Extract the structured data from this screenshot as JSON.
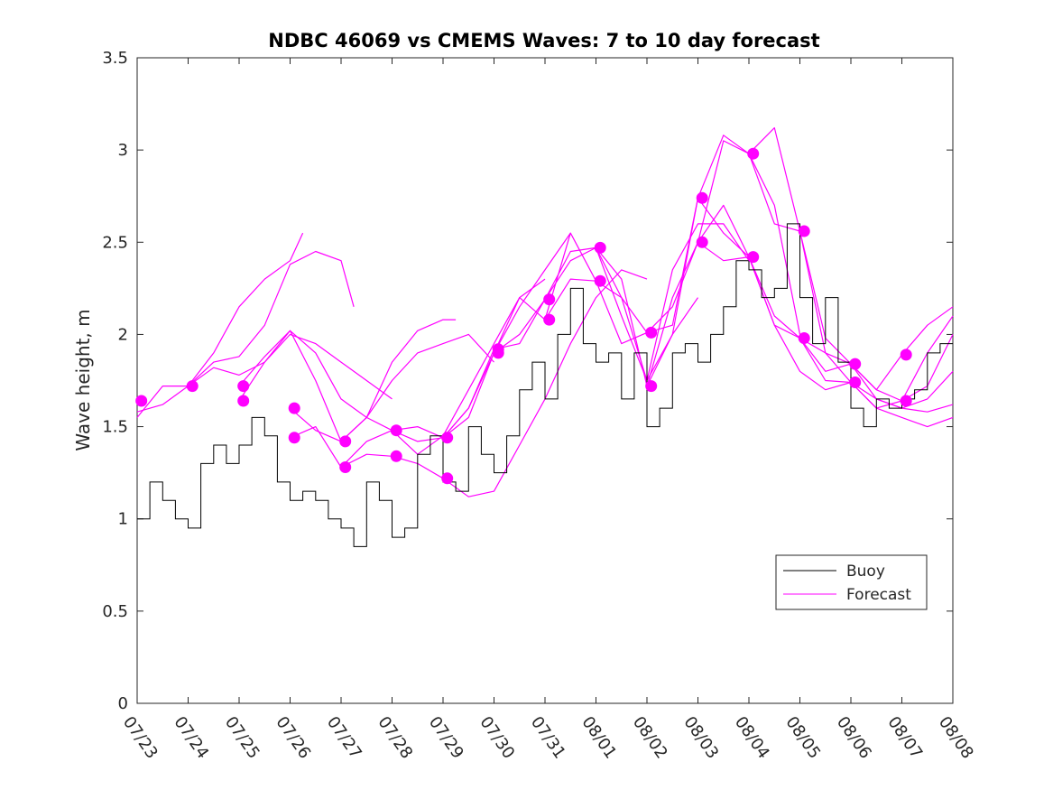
{
  "chart_data": {
    "type": "line",
    "title": "NDBC 46069 vs CMEMS Waves: 7 to 10 day forecast",
    "xlabel": "",
    "ylabel": "Wave height, m",
    "xlim": [
      "07/23",
      "08/08"
    ],
    "ylim": [
      0,
      3.5
    ],
    "x_tick_labels": [
      "07/23",
      "07/24",
      "07/25",
      "07/26",
      "07/27",
      "07/28",
      "07/29",
      "07/30",
      "07/31",
      "08/01",
      "08/02",
      "08/03",
      "08/04",
      "08/05",
      "08/06",
      "08/07",
      "08/08"
    ],
    "y_tick_labels": [
      "0",
      "0.5",
      "1",
      "1.5",
      "2",
      "2.5",
      "3",
      "3.5"
    ],
    "y_ticks": [
      0,
      0.5,
      1,
      1.5,
      2,
      2.5,
      3,
      3.5
    ],
    "grid": false,
    "legend_position": "lower-right",
    "legend": [
      "Buoy",
      "Forecast"
    ],
    "colors": {
      "buoy": "#000000",
      "forecast": "#ff00ff"
    },
    "buoy": {
      "name": "Buoy",
      "x": [
        "07/23 00:00",
        "07/23 06:00",
        "07/23 12:00",
        "07/23 18:00",
        "07/24 00:00",
        "07/24 06:00",
        "07/24 12:00",
        "07/24 18:00",
        "07/25 00:00",
        "07/25 06:00",
        "07/25 12:00",
        "07/25 18:00",
        "07/26 00:00",
        "07/26 06:00",
        "07/26 12:00",
        "07/26 18:00",
        "07/27 00:00",
        "07/27 06:00",
        "07/27 12:00",
        "07/27 18:00",
        "07/28 00:00",
        "07/28 06:00",
        "07/28 12:00",
        "07/28 18:00",
        "07/29 00:00",
        "07/29 06:00",
        "07/29 12:00",
        "07/29 18:00",
        "07/30 00:00",
        "07/30 06:00",
        "07/30 12:00",
        "07/30 18:00",
        "07/31 00:00",
        "07/31 06:00",
        "07/31 12:00",
        "07/31 18:00",
        "08/01 00:00",
        "08/01 06:00",
        "08/01 12:00",
        "08/01 18:00",
        "08/02 00:00",
        "08/02 06:00",
        "08/02 12:00",
        "08/02 18:00",
        "08/03 00:00",
        "08/03 06:00",
        "08/03 12:00",
        "08/03 18:00",
        "08/04 00:00",
        "08/04 06:00",
        "08/04 12:00",
        "08/04 18:00",
        "08/05 00:00",
        "08/05 06:00",
        "08/05 12:00",
        "08/05 18:00",
        "08/06 00:00",
        "08/06 06:00",
        "08/06 12:00",
        "08/06 18:00",
        "08/07 00:00",
        "08/07 06:00",
        "08/07 12:00",
        "08/07 18:00"
      ],
      "y": [
        1.0,
        1.2,
        1.1,
        1.0,
        0.95,
        1.3,
        1.4,
        1.3,
        1.4,
        1.55,
        1.45,
        1.2,
        1.1,
        1.15,
        1.1,
        1.0,
        0.95,
        0.85,
        1.2,
        1.1,
        0.9,
        0.95,
        1.35,
        1.45,
        1.2,
        1.15,
        1.5,
        1.35,
        1.25,
        1.45,
        1.7,
        1.85,
        1.65,
        2.0,
        2.25,
        1.95,
        1.85,
        1.9,
        1.65,
        1.9,
        1.5,
        1.6,
        1.9,
        1.95,
        1.85,
        2.0,
        2.15,
        2.4,
        2.35,
        2.2,
        2.25,
        2.6,
        2.2,
        1.95,
        2.2,
        1.85,
        1.6,
        1.5,
        1.65,
        1.6,
        1.65,
        1.7,
        1.9,
        1.95
      ]
    },
    "forecast_series": [
      {
        "x": [
          "07/23 00:00",
          "07/23 12:00",
          "07/24 00:00",
          "07/24 12:00",
          "07/25 00:00",
          "07/25 12:00",
          "07/26 00:00",
          "07/26 12:00",
          "07/27 00:00",
          "07/27 06:00"
        ],
        "y": [
          1.55,
          1.72,
          1.72,
          1.85,
          1.88,
          2.05,
          2.38,
          2.45,
          2.4,
          2.15
        ]
      },
      {
        "x": [
          "07/23 00:00",
          "07/23 12:00",
          "07/24 00:00",
          "07/24 12:00",
          "07/25 00:00",
          "07/25 12:00",
          "07/26 00:00",
          "07/26 06:00"
        ],
        "y": [
          1.58,
          1.62,
          1.72,
          1.9,
          2.15,
          2.3,
          2.4,
          2.55
        ]
      },
      {
        "x": [
          "07/24 00:00",
          "07/24 12:00",
          "07/25 00:00",
          "07/25 12:00",
          "07/26 00:00",
          "07/26 12:00",
          "07/27 00:00",
          "07/27 12:00",
          "07/28 00:00"
        ],
        "y": [
          1.72,
          1.82,
          1.78,
          1.85,
          2.0,
          1.95,
          1.85,
          1.75,
          1.65
        ]
      },
      {
        "x": [
          "07/25 00:00",
          "07/25 12:00",
          "07/26 00:00",
          "07/26 12:00",
          "07/27 00:00",
          "07/27 12:00",
          "07/28 00:00",
          "07/28 12:00",
          "07/29 00:00",
          "07/29 06:00"
        ],
        "y": [
          1.72,
          1.88,
          2.02,
          1.9,
          1.65,
          1.55,
          1.85,
          2.02,
          2.08,
          2.08
        ]
      },
      {
        "x": [
          "07/25 00:00",
          "07/25 12:00",
          "07/26 00:00",
          "07/26 12:00",
          "07/27 00:00",
          "07/27 12:00",
          "07/28 00:00",
          "07/28 12:00",
          "07/29 00:00",
          "07/29 12:00",
          "07/30 00:00"
        ],
        "y": [
          1.64,
          1.85,
          2.02,
          1.75,
          1.42,
          1.55,
          1.75,
          1.9,
          1.95,
          2.0,
          1.85
        ]
      },
      {
        "x": [
          "07/26 00:00",
          "07/26 12:00",
          "07/27 00:00",
          "07/27 12:00",
          "07/28 00:00",
          "07/28 12:00",
          "07/29 00:00",
          "07/29 12:00",
          "07/30 00:00",
          "07/30 12:00",
          "07/31 00:00"
        ],
        "y": [
          1.6,
          1.48,
          1.42,
          1.55,
          1.48,
          1.35,
          1.45,
          1.7,
          1.95,
          2.2,
          2.3
        ]
      },
      {
        "x": [
          "07/26 00:00",
          "07/26 12:00",
          "07/27 00:00",
          "07/27 12:00",
          "07/28 00:00",
          "07/28 12:00",
          "07/29 00:00",
          "07/29 12:00",
          "07/30 00:00",
          "07/30 12:00",
          "07/31 00:00",
          "07/31 12:00"
        ],
        "y": [
          1.44,
          1.5,
          1.28,
          1.42,
          1.48,
          1.42,
          1.44,
          1.55,
          1.9,
          2.15,
          2.35,
          2.55
        ]
      },
      {
        "x": [
          "07/27 00:00",
          "07/27 12:00",
          "07/28 00:00",
          "07/28 12:00",
          "07/29 00:00",
          "07/29 12:00",
          "07/30 00:00",
          "07/30 12:00",
          "07/31 00:00",
          "07/31 12:00",
          "08/01 00:00",
          "08/01 12:00",
          "08/02 00:00"
        ],
        "y": [
          1.28,
          1.35,
          1.34,
          1.3,
          1.22,
          1.12,
          1.15,
          1.4,
          1.65,
          1.95,
          2.2,
          2.35,
          2.3
        ]
      },
      {
        "x": [
          "07/28 00:00",
          "07/28 12:00",
          "07/29 00:00",
          "07/29 12:00",
          "07/30 00:00",
          "07/30 12:00",
          "07/31 00:00",
          "07/31 12:00",
          "08/01 00:00",
          "08/01 12:00",
          "08/02 00:00",
          "08/02 12:00",
          "08/03 00:00"
        ],
        "y": [
          1.48,
          1.5,
          1.44,
          1.6,
          1.92,
          1.95,
          2.19,
          2.45,
          2.47,
          2.3,
          1.72,
          2.0,
          2.2
        ]
      },
      {
        "x": [
          "07/29 00:00",
          "07/29 12:00",
          "07/30 00:00",
          "07/30 12:00",
          "07/31 00:00",
          "07/31 12:00",
          "08/01 00:00",
          "08/01 12:00",
          "08/02 00:00",
          "08/02 12:00",
          "08/03 00:00",
          "08/03 12:00",
          "08/04 00:00"
        ],
        "y": [
          1.44,
          1.6,
          1.9,
          2.2,
          2.08,
          2.55,
          2.29,
          2.2,
          1.75,
          2.35,
          2.6,
          2.6,
          2.4
        ]
      },
      {
        "x": [
          "07/30 00:00",
          "07/30 12:00",
          "07/31 00:00",
          "07/31 12:00",
          "08/01 00:00",
          "08/01 12:00",
          "08/02 00:00",
          "08/02 12:00",
          "08/03 00:00",
          "08/03 12:00",
          "08/04 00:00",
          "08/04 12:00",
          "08/05 00:00"
        ],
        "y": [
          1.9,
          2.0,
          2.19,
          2.4,
          2.47,
          2.1,
          1.75,
          2.0,
          2.74,
          3.08,
          2.98,
          2.7,
          2.0
        ]
      },
      {
        "x": [
          "07/31 00:00",
          "07/31 12:00",
          "08/01 00:00",
          "08/01 12:00",
          "08/02 00:00",
          "08/02 12:00",
          "08/03 00:00",
          "08/03 12:00",
          "08/04 00:00",
          "08/04 12:00",
          "08/05 00:00",
          "08/05 12:00",
          "08/06 00:00"
        ],
        "y": [
          2.08,
          2.3,
          2.29,
          1.95,
          2.01,
          2.15,
          2.5,
          3.05,
          2.98,
          3.12,
          2.56,
          1.98,
          1.84
        ]
      },
      {
        "x": [
          "08/01 00:00",
          "08/01 12:00",
          "08/02 00:00",
          "08/02 12:00",
          "08/03 00:00",
          "08/03 12:00",
          "08/04 00:00",
          "08/04 12:00",
          "08/05 00:00",
          "08/05 12:00",
          "08/06 00:00",
          "08/06 12:00",
          "08/07 00:00",
          "08/07 12:00",
          "08/08 00:00"
        ],
        "y": [
          2.47,
          2.2,
          2.01,
          2.05,
          2.74,
          2.55,
          2.42,
          2.1,
          1.98,
          1.9,
          1.84,
          1.7,
          1.64,
          1.72,
          2.0
        ]
      },
      {
        "x": [
          "08/02 00:00",
          "08/02 12:00",
          "08/03 00:00",
          "08/03 12:00",
          "08/04 00:00",
          "08/04 12:00",
          "08/05 00:00",
          "08/05 12:00",
          "08/06 00:00",
          "08/06 12:00",
          "08/07 00:00",
          "08/07 12:00",
          "08/08 00:00"
        ],
        "y": [
          1.72,
          2.2,
          2.5,
          2.7,
          2.42,
          2.05,
          1.98,
          1.75,
          1.74,
          1.6,
          1.64,
          1.9,
          2.1
        ]
      },
      {
        "x": [
          "08/03 00:00",
          "08/03 12:00",
          "08/04 00:00",
          "08/04 12:00",
          "08/05 00:00",
          "08/05 12:00",
          "08/06 00:00",
          "08/06 12:00",
          "08/07 00:00",
          "08/07 12:00",
          "08/08 00:00"
        ],
        "y": [
          2.5,
          2.4,
          2.42,
          2.05,
          1.8,
          1.7,
          1.74,
          1.6,
          1.55,
          1.5,
          1.55
        ]
      },
      {
        "x": [
          "08/04 00:00",
          "08/04 12:00",
          "08/05 00:00",
          "08/05 12:00",
          "08/06 00:00",
          "08/06 12:00",
          "08/07 00:00",
          "08/07 12:00",
          "08/08 00:00"
        ],
        "y": [
          2.98,
          2.6,
          2.56,
          1.9,
          1.74,
          1.65,
          1.6,
          1.65,
          1.8
        ]
      },
      {
        "x": [
          "08/05 00:00",
          "08/05 12:00",
          "08/06 00:00",
          "08/06 12:00",
          "08/07 00:00",
          "08/07 12:00",
          "08/08 00:00"
        ],
        "y": [
          1.98,
          1.8,
          1.84,
          1.65,
          1.6,
          1.58,
          1.62
        ]
      },
      {
        "x": [
          "08/06 00:00",
          "08/06 12:00",
          "08/07 00:00",
          "08/07 12:00",
          "08/08 00:00"
        ],
        "y": [
          1.84,
          1.7,
          1.89,
          2.05,
          2.15
        ]
      }
    ],
    "forecast_markers": {
      "x": [
        "07/23 02:00",
        "07/24 02:00",
        "07/25 02:00",
        "07/25 02:00",
        "07/26 02:00",
        "07/26 02:00",
        "07/27 02:00",
        "07/27 02:00",
        "07/28 02:00",
        "07/28 02:00",
        "07/29 02:00",
        "07/29 02:00",
        "07/30 02:00",
        "07/30 02:00",
        "07/31 02:00",
        "07/31 02:00",
        "08/01 02:00",
        "08/01 02:00",
        "08/02 02:00",
        "08/02 02:00",
        "08/03 02:00",
        "08/03 02:00",
        "08/04 02:00",
        "08/04 02:00",
        "08/05 02:00",
        "08/05 02:00",
        "08/06 02:00",
        "08/06 02:00",
        "08/07 02:00",
        "08/07 02:00"
      ],
      "y": [
        1.64,
        1.72,
        1.72,
        1.64,
        1.6,
        1.44,
        1.42,
        1.28,
        1.48,
        1.34,
        1.44,
        1.22,
        1.92,
        1.9,
        2.19,
        2.08,
        2.47,
        2.29,
        2.01,
        1.72,
        2.74,
        2.5,
        2.98,
        2.42,
        2.56,
        1.98,
        1.84,
        1.74,
        1.89,
        1.64
      ]
    }
  }
}
